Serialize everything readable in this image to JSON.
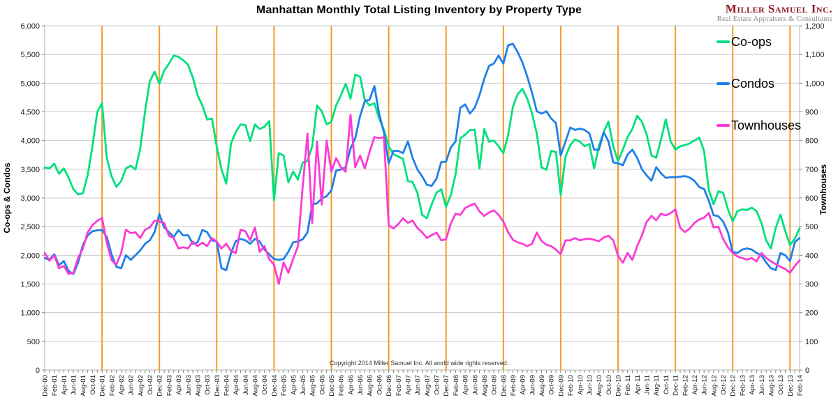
{
  "header": {
    "logo": {
      "name": "Miller Samuel Inc.",
      "tagline": "Real Estate Appraisers & Consultants",
      "name_color": "#8e1d23",
      "tagline_color": "#8b8682"
    }
  },
  "chart_data": {
    "type": "line",
    "title": "Manhattan Monthly Total Listing Inventory by Property Type",
    "footnote": "Copyright 2014 Miller Samuel Inc.  All world wide rights reserved.",
    "legend_position": "top-right-inside",
    "grid_color": "#c8c8c8",
    "axis_line_color": "#b0b0b0",
    "tick_text_color": "#1a1a1a",
    "vertical_gridlines": {
      "color": "#f59b28",
      "every_months": 12,
      "start_index": 12,
      "note": "orange line at each December"
    },
    "left_axis": {
      "title": "Co-ops & Condos",
      "min": 0,
      "max": 6000,
      "step": 500
    },
    "right_axis": {
      "title": "Townhouses",
      "min": 0,
      "max": 1200,
      "step": 100
    },
    "x_start": "Dec-00",
    "x_end": "Feb-14",
    "x_label_step_months": 2,
    "x_labels": [
      "Dec-00",
      "Feb-01",
      "Apr-01",
      "Jun-01",
      "Aug-01",
      "Oct-01",
      "Dec-01",
      "Feb-02",
      "Apr-02",
      "Jun-02",
      "Aug-02",
      "Oct-02",
      "Dec-02",
      "Feb-03",
      "Apr-03",
      "Jun-03",
      "Aug-03",
      "Oct-03",
      "Dec-03",
      "Feb-04",
      "Apr-04",
      "Jun-04",
      "Aug-04",
      "Oct-04",
      "Dec-04",
      "Feb-05",
      "Apr-05",
      "Jun-05",
      "Aug-05",
      "Oct-05",
      "Dec-05",
      "Feb-06",
      "Apr-06",
      "Jun-06",
      "Aug-06",
      "Oct-06",
      "Dec-06",
      "Feb-07",
      "Apr-07",
      "Jun-07",
      "Aug-07",
      "Oct-07",
      "Dec-07",
      "Feb-08",
      "Apr-08",
      "Jun-08",
      "Aug-08",
      "Oct-08",
      "Dec-08",
      "Feb-09",
      "Apr-09",
      "Jun-09",
      "Aug-09",
      "Oct-09",
      "Dec-09",
      "Feb-10",
      "Apr-10",
      "Jun-10",
      "Aug-10",
      "Oct-10",
      "Dec-10",
      "Feb-11",
      "Apr-11",
      "Jun-11",
      "Aug-11",
      "Oct-11",
      "Dec-11",
      "Feb-12",
      "Apr-12",
      "Jun-12",
      "Aug-12",
      "Oct-12",
      "Dec-12",
      "Feb-13",
      "Apr-13",
      "Jun-13",
      "Aug-13",
      "Oct-13",
      "Dec-13",
      "Feb-14"
    ],
    "series": [
      {
        "name": "Co-ops",
        "color": "#00e07c",
        "axis": "left",
        "values": [
          3530,
          3515,
          3595,
          3420,
          3515,
          3355,
          3150,
          3060,
          3080,
          3400,
          3900,
          4500,
          4650,
          3700,
          3375,
          3195,
          3290,
          3515,
          3560,
          3495,
          3860,
          4510,
          5030,
          5200,
          4990,
          5215,
          5340,
          5480,
          5460,
          5400,
          5320,
          5100,
          4790,
          4610,
          4365,
          4385,
          3900,
          3500,
          3250,
          3950,
          4150,
          4280,
          4270,
          3990,
          4280,
          4200,
          4240,
          4340,
          2960,
          3780,
          3740,
          3270,
          3460,
          3320,
          3620,
          3640,
          3900,
          4610,
          4510,
          4285,
          4325,
          4610,
          4790,
          4990,
          4730,
          5150,
          5115,
          4710,
          4610,
          4650,
          4385,
          4185,
          3900,
          3760,
          3720,
          3680,
          3295,
          3275,
          3090,
          2705,
          2645,
          2890,
          3090,
          3150,
          2845,
          3050,
          3415,
          4040,
          4100,
          4180,
          4190,
          3510,
          4200,
          3980,
          4000,
          3900,
          3780,
          4100,
          4590,
          4810,
          4900,
          4730,
          4470,
          4120,
          3535,
          3490,
          3820,
          3800,
          3050,
          3720,
          3920,
          4020,
          3980,
          3900,
          3940,
          3515,
          3900,
          4150,
          4330,
          3900,
          3640,
          3840,
          4060,
          4200,
          4430,
          4330,
          4100,
          3740,
          3700,
          4020,
          4370,
          3990,
          3840,
          3900,
          3920,
          3950,
          4000,
          4050,
          3820,
          3140,
          2890,
          3115,
          3090,
          2800,
          2590,
          2770,
          2800,
          2790,
          2830,
          2770,
          2565,
          2260,
          2120,
          2480,
          2710,
          2420,
          2180,
          2290,
          2470
        ]
      },
      {
        "name": "Condos",
        "color": "#1e80e8",
        "axis": "left",
        "values": [
          1950,
          1925,
          2020,
          1825,
          1900,
          1725,
          1675,
          1875,
          2180,
          2345,
          2420,
          2435,
          2440,
          2320,
          2015,
          1800,
          1775,
          2000,
          1920,
          2000,
          2085,
          2200,
          2260,
          2405,
          2720,
          2485,
          2405,
          2320,
          2440,
          2345,
          2350,
          2200,
          2225,
          2440,
          2405,
          2260,
          2240,
          1775,
          1740,
          2040,
          2250,
          2285,
          2260,
          2200,
          2285,
          2240,
          2100,
          2015,
          1935,
          1920,
          1935,
          2060,
          2225,
          2240,
          2280,
          2400,
          2890,
          2905,
          2990,
          3030,
          3130,
          3475,
          3495,
          3535,
          3860,
          4040,
          4425,
          4690,
          4710,
          4950,
          4470,
          4140,
          3600,
          3820,
          3820,
          3780,
          3985,
          3700,
          3495,
          3375,
          3230,
          3210,
          3335,
          3625,
          3630,
          3880,
          3985,
          4570,
          4630,
          4470,
          4570,
          4790,
          5075,
          5300,
          5340,
          5480,
          5340,
          5660,
          5685,
          5540,
          5360,
          5115,
          4830,
          4510,
          4470,
          4510,
          4385,
          4305,
          3740,
          3985,
          4225,
          4185,
          4205,
          4185,
          4125,
          3840,
          3840,
          4145,
          3985,
          3620,
          3600,
          3570,
          3755,
          3840,
          3700,
          3500,
          3390,
          3300,
          3535,
          3430,
          3350,
          3360,
          3360,
          3370,
          3380,
          3355,
          3295,
          3190,
          3155,
          2950,
          2700,
          2680,
          2590,
          2400,
          2060,
          2040,
          2100,
          2120,
          2100,
          2040,
          2000,
          1875,
          1775,
          1740,
          2040,
          2000,
          1900,
          2230,
          2300
        ]
      },
      {
        "name": "Townhouses",
        "color": "#fa3bd6",
        "axis": "right",
        "values": [
          408,
          381,
          400,
          355,
          363,
          335,
          339,
          391,
          424,
          480,
          505,
          520,
          530,
          444,
          383,
          367,
          408,
          489,
          477,
          480,
          460,
          489,
          497,
          521,
          517,
          513,
          468,
          460,
          424,
          428,
          424,
          448,
          432,
          444,
          432,
          460,
          448,
          424,
          440,
          415,
          408,
          489,
          484,
          452,
          497,
          412,
          432,
          387,
          367,
          300,
          375,
          339,
          387,
          432,
          640,
          824,
          513,
          796,
          577,
          800,
          691,
          739,
          707,
          691,
          890,
          707,
          748,
          703,
          760,
          812,
          808,
          812,
          505,
          493,
          509,
          529,
          513,
          521,
          495,
          480,
          460,
          470,
          479,
          452,
          456,
          511,
          545,
          541,
          565,
          573,
          580,
          553,
          537,
          549,
          557,
          541,
          517,
          480,
          454,
          445,
          440,
          432,
          440,
          479,
          450,
          437,
          432,
          420,
          404,
          452,
          452,
          460,
          452,
          456,
          458,
          454,
          449,
          462,
          468,
          452,
          398,
          374,
          408,
          384,
          432,
          469,
          517,
          537,
          522,
          545,
          539,
          547,
          560,
          496,
          481,
          493,
          513,
          525,
          531,
          547,
          497,
          500,
          457,
          428,
          408,
          396,
          390,
          385,
          390,
          379,
          408,
          391,
          379,
          369,
          360,
          352,
          339,
          363,
          382
        ]
      }
    ]
  }
}
